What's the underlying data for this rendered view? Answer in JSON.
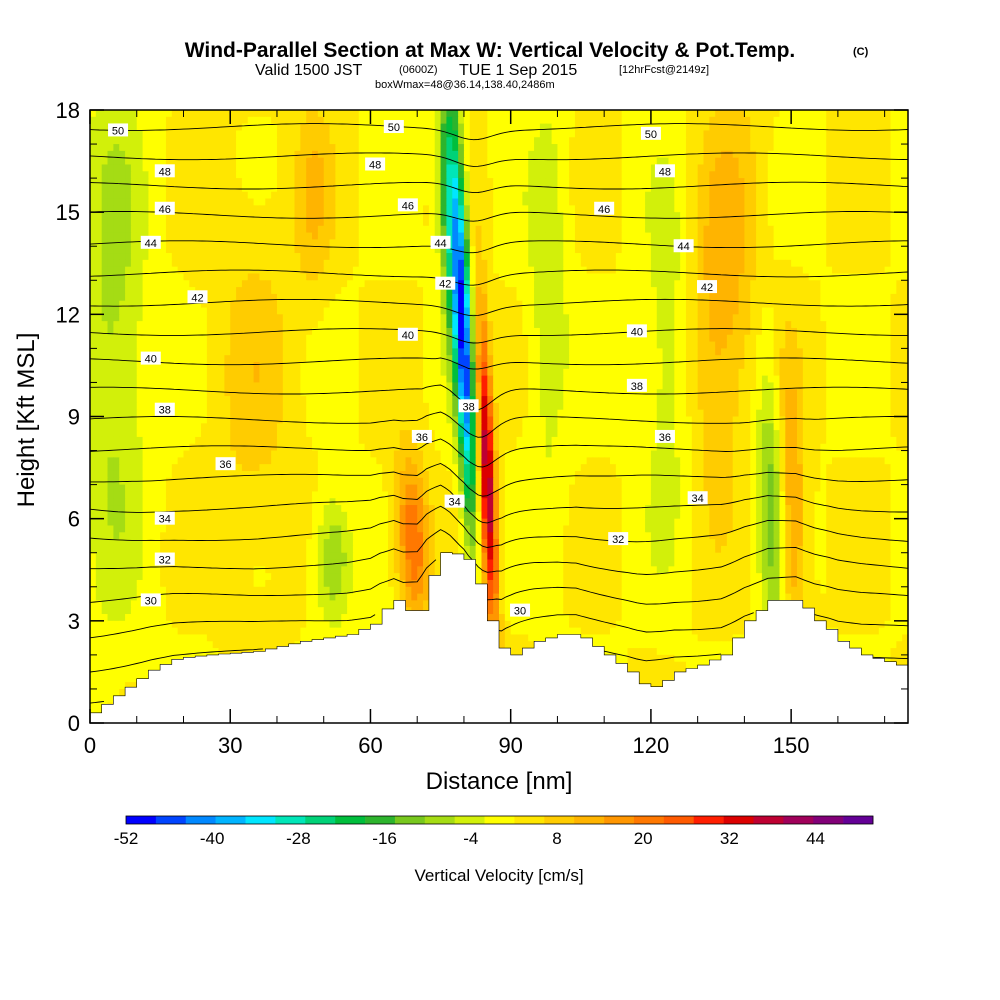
{
  "header": {
    "title": "Wind-Parallel Section at Max W: Vertical Velocity & Pot.Temp.",
    "title_mark": "(C)",
    "valid_prefix": "Valid 1500 JST",
    "valid_zulu": "(0600Z)",
    "valid_date": "TUE 1 Sep 2015",
    "forecast": "[12hrFcst@2149z]",
    "box_info": "boxWmax=48@36.14,138.40,2486m"
  },
  "chart_data": {
    "type": "heatmap",
    "xlabel": "Distance [nm]",
    "ylabel": "Height [Kft MSL]",
    "xlim": [
      0,
      175
    ],
    "ylim": [
      0,
      18
    ],
    "xticks": [
      "0",
      "30",
      "60",
      "90",
      "120",
      "150"
    ],
    "xtick_values": [
      0,
      30,
      60,
      90,
      120,
      150
    ],
    "yticks": [
      "0",
      "3",
      "6",
      "9",
      "12",
      "15",
      "18"
    ],
    "ytick_values": [
      0,
      3,
      6,
      9,
      12,
      15,
      18
    ],
    "colorbar": {
      "label": "Vertical Velocity [cm/s]",
      "range": [
        -52,
        52
      ],
      "tick_labels": [
        "-52",
        "-40",
        "-28",
        "-16",
        "-4",
        "8",
        "20",
        "32",
        "44"
      ],
      "tick_values": [
        -52,
        -40,
        -28,
        -16,
        -4,
        8,
        20,
        32,
        44
      ],
      "colors": [
        "#0000ff",
        "#0044ff",
        "#0088ff",
        "#00b4ff",
        "#00e6ff",
        "#00e6b8",
        "#00d278",
        "#00be3c",
        "#2db42d",
        "#78c81e",
        "#a5dc14",
        "#d2f00a",
        "#ffff00",
        "#ffe600",
        "#ffcc00",
        "#ffb400",
        "#ff9600",
        "#ff7800",
        "#ff5a00",
        "#ff1e00",
        "#dc0000",
        "#be0032",
        "#a0005a",
        "#820078",
        "#640096"
      ]
    },
    "terrain": [
      [
        0,
        0.3
      ],
      [
        2,
        0.5
      ],
      [
        4,
        0.7
      ],
      [
        7,
        1.0
      ],
      [
        10,
        1.3
      ],
      [
        13,
        1.6
      ],
      [
        18,
        1.9
      ],
      [
        25,
        2.0
      ],
      [
        35,
        2.1
      ],
      [
        45,
        2.4
      ],
      [
        55,
        2.6
      ],
      [
        60,
        2.9
      ],
      [
        62,
        3.3
      ],
      [
        65,
        3.6
      ],
      [
        67,
        3.3
      ],
      [
        70,
        3.3
      ],
      [
        72,
        4.2
      ],
      [
        75,
        5.0
      ],
      [
        77,
        5.0
      ],
      [
        80,
        4.8
      ],
      [
        82,
        4.3
      ],
      [
        85,
        3.0
      ],
      [
        87,
        2.4
      ],
      [
        88,
        2.0
      ],
      [
        90,
        2.0
      ],
      [
        95,
        2.4
      ],
      [
        100,
        2.6
      ],
      [
        104,
        2.6
      ],
      [
        108,
        2.2
      ],
      [
        112,
        1.8
      ],
      [
        115,
        1.5
      ],
      [
        117,
        1.2
      ],
      [
        119,
        1.0
      ],
      [
        122,
        1.2
      ],
      [
        125,
        1.5
      ],
      [
        130,
        1.7
      ],
      [
        135,
        2.0
      ],
      [
        140,
        3.0
      ],
      [
        145,
        3.6
      ],
      [
        151,
        3.6
      ],
      [
        155,
        3.0
      ],
      [
        158,
        2.7
      ],
      [
        160,
        2.4
      ],
      [
        165,
        2.0
      ],
      [
        170,
        1.8
      ],
      [
        175,
        1.6
      ]
    ],
    "theta_contours": [
      {
        "label": "30",
        "pos": [
          [
            13,
            3.6
          ],
          [
            92,
            3.3
          ]
        ]
      },
      {
        "label": "32",
        "pos": [
          [
            16,
            4.8
          ],
          [
            113,
            5.4
          ]
        ]
      },
      {
        "label": "34",
        "pos": [
          [
            16,
            6.0
          ],
          [
            78,
            6.5
          ],
          [
            130,
            6.6
          ]
        ]
      },
      {
        "label": "36",
        "pos": [
          [
            29,
            7.6
          ],
          [
            71,
            8.4
          ],
          [
            123,
            8.4
          ]
        ]
      },
      {
        "label": "38",
        "pos": [
          [
            16,
            9.2
          ],
          [
            81,
            9.3
          ],
          [
            117,
            9.9
          ]
        ]
      },
      {
        "label": "40",
        "pos": [
          [
            13,
            10.7
          ],
          [
            68,
            11.4
          ],
          [
            117,
            11.5
          ]
        ]
      },
      {
        "label": "42",
        "pos": [
          [
            23,
            12.5
          ],
          [
            76,
            12.9
          ],
          [
            132,
            12.8
          ]
        ]
      },
      {
        "label": "44",
        "pos": [
          [
            13,
            14.1
          ],
          [
            75,
            14.1
          ],
          [
            127,
            14.0
          ]
        ]
      },
      {
        "label": "46",
        "pos": [
          [
            16,
            15.1
          ],
          [
            68,
            15.2
          ],
          [
            110,
            15.1
          ]
        ]
      },
      {
        "label": "48",
        "pos": [
          [
            16,
            16.2
          ],
          [
            61,
            16.4
          ],
          [
            123,
            16.2
          ]
        ]
      },
      {
        "label": "50",
        "pos": [
          [
            6,
            17.4
          ],
          [
            65,
            17.5
          ],
          [
            120,
            17.3
          ]
        ]
      }
    ],
    "w_features": [
      {
        "x": 85,
        "y": 7.2,
        "w": 38,
        "sx": 1.2,
        "sy": 3.4,
        "tilt": -0.24
      },
      {
        "x": 80,
        "y": 11.0,
        "w": -46,
        "sx": 1.3,
        "sy": 3.8,
        "tilt": -0.24
      },
      {
        "x": 77,
        "y": 15.0,
        "w": -26,
        "sx": 1.6,
        "sy": 3.0,
        "tilt": -0.2
      },
      {
        "x": 69,
        "y": 5.4,
        "w": 22,
        "sx": 2.5,
        "sy": 1.7,
        "tilt": -0.3
      },
      {
        "x": 52,
        "y": 4.8,
        "w": -14,
        "sx": 2.8,
        "sy": 1.3,
        "tilt": 0
      },
      {
        "x": 5,
        "y": 11.5,
        "w": -10,
        "sx": 5,
        "sy": 6,
        "tilt": 0
      },
      {
        "x": 135,
        "y": 12.5,
        "w": 12,
        "sx": 5,
        "sy": 4,
        "tilt": 0.3
      },
      {
        "x": 124,
        "y": 10.5,
        "w": -8,
        "sx": 4,
        "sy": 4,
        "tilt": 0
      },
      {
        "x": 146,
        "y": 6.5,
        "w": -16,
        "sx": 2.2,
        "sy": 3,
        "tilt": -0.15
      },
      {
        "x": 150,
        "y": 6.2,
        "w": 16,
        "sx": 2.2,
        "sy": 3,
        "tilt": -0.15
      },
      {
        "x": 48,
        "y": 15.5,
        "w": 8,
        "sx": 3,
        "sy": 2,
        "tilt": 0
      },
      {
        "x": 98,
        "y": 12.5,
        "w": -8,
        "sx": 3,
        "sy": 4,
        "tilt": 0
      },
      {
        "x": 35,
        "y": 10,
        "w": 6,
        "sx": 6,
        "sy": 4,
        "tilt": 0
      }
    ]
  }
}
